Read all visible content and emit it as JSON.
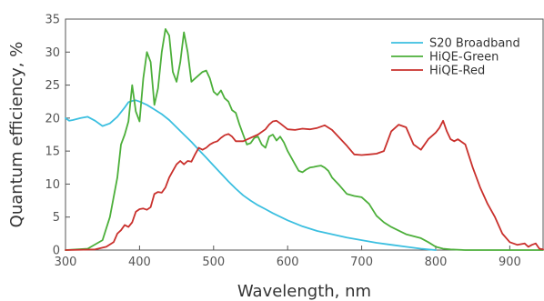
{
  "chart_data": {
    "type": "line",
    "title": "",
    "xlabel": "Wavelength, nm",
    "ylabel": "Quantum efficiency, %",
    "xlim": [
      300,
      945
    ],
    "ylim": [
      0,
      35
    ],
    "xticks": [
      300,
      400,
      500,
      600,
      700,
      800,
      900
    ],
    "yticks": [
      0,
      5,
      10,
      15,
      20,
      25,
      30,
      35
    ],
    "grid": false,
    "legend_position": "top-right",
    "series": [
      {
        "name": "S20 Broadband",
        "color": "#3bbfe0",
        "x": [
          300,
          305,
          310,
          320,
          330,
          340,
          350,
          360,
          370,
          380,
          385,
          390,
          395,
          400,
          410,
          420,
          430,
          440,
          450,
          460,
          470,
          480,
          490,
          500,
          510,
          520,
          530,
          540,
          550,
          560,
          570,
          580,
          600,
          620,
          640,
          660,
          680,
          700,
          720,
          740,
          760,
          780,
          790,
          800
        ],
        "y": [
          20,
          19.6,
          19.7,
          20.0,
          20.2,
          19.6,
          18.8,
          19.2,
          20.2,
          21.6,
          22.4,
          22.6,
          22.7,
          22.5,
          22.0,
          21.3,
          20.6,
          19.7,
          18.6,
          17.5,
          16.4,
          15.2,
          14.0,
          12.8,
          11.6,
          10.4,
          9.3,
          8.3,
          7.5,
          6.8,
          6.2,
          5.6,
          4.5,
          3.6,
          2.9,
          2.4,
          1.9,
          1.5,
          1.1,
          0.8,
          0.5,
          0.2,
          0.1,
          0
        ]
      },
      {
        "name": "HiQE-Green",
        "color": "#4caf3a",
        "x": [
          300,
          330,
          350,
          360,
          370,
          375,
          380,
          385,
          390,
          395,
          400,
          405,
          410,
          415,
          420,
          425,
          430,
          435,
          440,
          445,
          450,
          455,
          460,
          465,
          470,
          475,
          480,
          485,
          490,
          495,
          500,
          505,
          510,
          515,
          520,
          525,
          530,
          535,
          540,
          545,
          550,
          555,
          560,
          565,
          570,
          575,
          580,
          585,
          590,
          595,
          600,
          605,
          610,
          615,
          620,
          625,
          630,
          635,
          640,
          645,
          650,
          655,
          660,
          670,
          680,
          690,
          700,
          710,
          720,
          730,
          740,
          760,
          780,
          790,
          800,
          810,
          820,
          840,
          860,
          880,
          900,
          945
        ],
        "y": [
          0,
          0.2,
          1.5,
          5.0,
          11.0,
          16.0,
          17.5,
          19.5,
          25.0,
          21.0,
          19.5,
          26.0,
          30.0,
          28.5,
          22.0,
          24.5,
          30.0,
          33.5,
          32.5,
          27.0,
          25.5,
          28.5,
          33.0,
          30.0,
          25.5,
          26.0,
          26.5,
          27.0,
          27.2,
          26.0,
          24.0,
          23.5,
          24.2,
          23.0,
          22.5,
          21.2,
          20.8,
          19.0,
          17.5,
          16.0,
          16.2,
          17.0,
          17.2,
          16.0,
          15.5,
          17.2,
          17.5,
          16.6,
          17.2,
          16.3,
          15.0,
          14.0,
          13.0,
          12.0,
          11.8,
          12.2,
          12.5,
          12.6,
          12.7,
          12.8,
          12.5,
          12.0,
          11.0,
          9.8,
          8.5,
          8.2,
          8.0,
          7.0,
          5.2,
          4.2,
          3.5,
          2.4,
          1.8,
          1.2,
          0.5,
          0.2,
          0.1,
          0,
          0,
          0,
          0,
          0
        ]
      },
      {
        "name": "HiQE-Red",
        "color": "#c9302c",
        "x": [
          300,
          340,
          355,
          365,
          370,
          375,
          380,
          385,
          390,
          395,
          400,
          405,
          410,
          415,
          420,
          425,
          430,
          435,
          440,
          445,
          450,
          455,
          460,
          465,
          470,
          475,
          480,
          485,
          490,
          495,
          500,
          505,
          510,
          515,
          520,
          525,
          530,
          540,
          550,
          560,
          570,
          575,
          580,
          585,
          590,
          600,
          610,
          620,
          630,
          640,
          650,
          660,
          670,
          680,
          690,
          700,
          710,
          720,
          730,
          740,
          750,
          760,
          770,
          780,
          790,
          800,
          805,
          810,
          815,
          820,
          825,
          830,
          840,
          850,
          860,
          870,
          880,
          890,
          900,
          910,
          920,
          925,
          930,
          935,
          940,
          945
        ],
        "y": [
          0,
          0.1,
          0.5,
          1.2,
          2.5,
          3.0,
          3.8,
          3.5,
          4.2,
          5.8,
          6.2,
          6.3,
          6.1,
          6.5,
          8.5,
          8.8,
          8.7,
          9.5,
          11.0,
          12.0,
          13.0,
          13.5,
          13.0,
          13.5,
          13.4,
          14.5,
          15.5,
          15.2,
          15.5,
          16.0,
          16.3,
          16.5,
          17.0,
          17.4,
          17.6,
          17.2,
          16.5,
          16.5,
          17.0,
          17.5,
          18.3,
          19.0,
          19.5,
          19.6,
          19.2,
          18.3,
          18.2,
          18.4,
          18.3,
          18.5,
          18.9,
          18.2,
          17.0,
          15.8,
          14.5,
          14.4,
          14.5,
          14.6,
          15.0,
          18.0,
          19.0,
          18.6,
          16.0,
          15.2,
          16.8,
          17.8,
          18.5,
          19.6,
          18.0,
          16.8,
          16.5,
          16.8,
          16.0,
          12.5,
          9.5,
          7.0,
          5.0,
          2.5,
          1.2,
          0.8,
          1.0,
          0.5,
          0.8,
          1.0,
          0.2,
          0.1
        ]
      }
    ]
  }
}
